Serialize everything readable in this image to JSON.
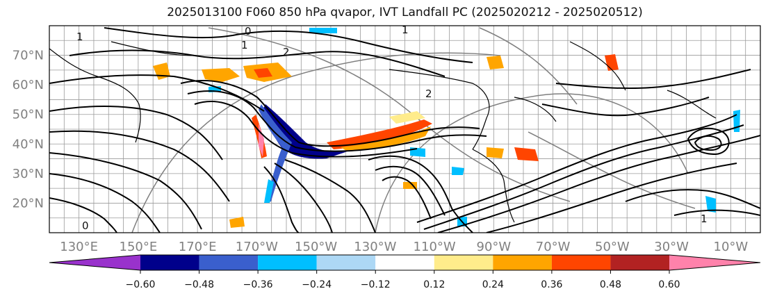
{
  "chart_data": {
    "type": "heatmap",
    "title": "2025013100 F060 850 hPa qvapor, IVT Landfall PC (2025020212 - 2025020512)",
    "lat_ticks": [
      "70°N",
      "60°N",
      "50°N",
      "40°N",
      "30°N",
      "20°N"
    ],
    "lon_ticks": [
      "130°E",
      "150°E",
      "170°E",
      "170°W",
      "150°W",
      "130°W",
      "110°W",
      "90°W",
      "70°W",
      "50°W",
      "30°W",
      "10°W"
    ],
    "lat_range": [
      10,
      80
    ],
    "lon_range": [
      120,
      360
    ],
    "colorbar": {
      "boundaries": [
        -0.6,
        -0.48,
        -0.36,
        -0.24,
        -0.12,
        0.12,
        0.24,
        0.36,
        0.48,
        0.6
      ],
      "labels": [
        "−0.60",
        "−0.48",
        "−0.36",
        "−0.24",
        "−0.12",
        "0.12",
        "0.24",
        "0.36",
        "0.48",
        "0.60"
      ],
      "colors": [
        "#9932CC",
        "#00008B",
        "#3A5FCD",
        "#00BFFF",
        "#ADD8F5",
        "#FFFFFF",
        "#FFEC8B",
        "#FFA500",
        "#FF4500",
        "#B22222",
        "#FF82AB"
      ],
      "extend": "both"
    },
    "contour_labels": [
      "1",
      "0",
      "1",
      "2",
      "2",
      "1",
      "0",
      "1"
    ],
    "grid": true
  }
}
